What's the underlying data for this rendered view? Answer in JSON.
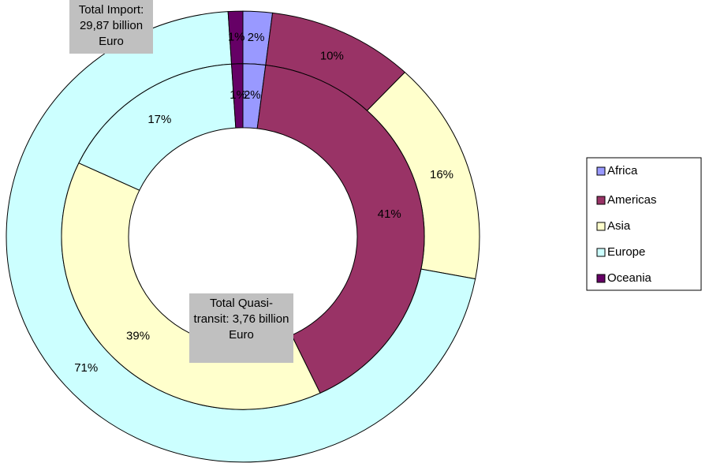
{
  "chart_data": {
    "type": "doughnut",
    "categories": [
      "Africa",
      "Americas",
      "Asia",
      "Europe",
      "Oceania"
    ],
    "colors": [
      "#9999ff",
      "#993366",
      "#ffffcc",
      "#ccffff",
      "#660066"
    ],
    "series": [
      {
        "name": "Total Import: 29,87 billion Euro",
        "values": [
          2,
          10,
          16,
          71,
          1
        ],
        "value_labels": [
          "2%",
          "10%",
          "16%",
          "71%",
          "1%"
        ]
      },
      {
        "name": "Total Quasi-transit: 3,76 billion Euro",
        "values": [
          2,
          41,
          39,
          17,
          1
        ],
        "value_labels": [
          "2%",
          "41%",
          "39%",
          "17%",
          "1%"
        ]
      }
    ],
    "legend": "right"
  }
}
